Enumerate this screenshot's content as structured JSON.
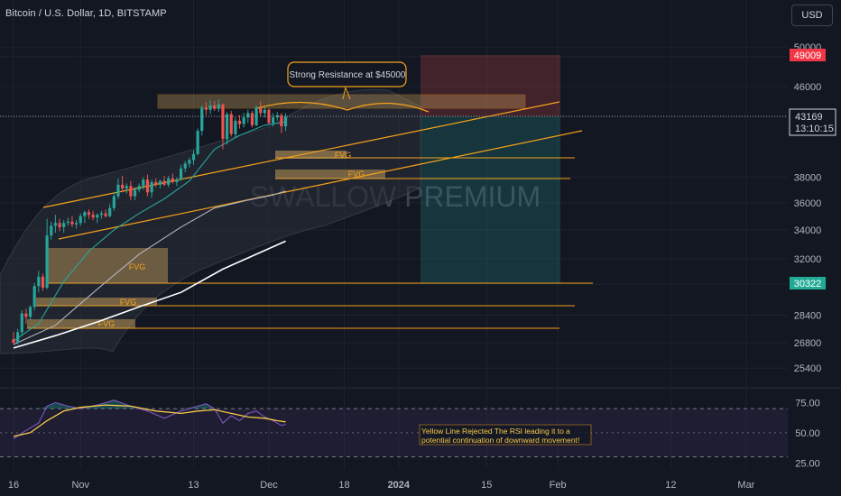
{
  "header": {
    "symbol_title": "Bitcoin / U.S. Dollar, 1D, BITSTAMP",
    "currency_button": "USD"
  },
  "watermark": "SWALLOW PREMIUM",
  "colors": {
    "background": "#131722",
    "up_candle": "#26a69a",
    "down_candle": "#ef5350",
    "annotation": "#f7a21b",
    "sma_fast": "#26a69a",
    "sma_mid": "#b2b5be",
    "sma_slow": "#ffffff",
    "rsi_line": "#7e57c2",
    "rsi_ma": "#f7c948"
  },
  "annotations": {
    "resistance_label": "Strong Resistance at $45000",
    "fvg_label": "FVG",
    "rsi_note_line1": "Yellow Line Rejected The RSI leading it to a",
    "rsi_note_line2": "potential continuation of downward movement!"
  },
  "price_badges": {
    "target_high": "49009",
    "current": "43169",
    "countdown": "13:10:15",
    "target_low": "30322"
  },
  "chart_data": {
    "type": "candlestick",
    "title": "Bitcoin / U.S. Dollar, 1D, BITSTAMP",
    "y_scale": "log",
    "y_ticks": [
      25400,
      26800,
      28400,
      30322,
      32000,
      34000,
      36000,
      38000,
      43169,
      46000,
      49009,
      50000
    ],
    "x_ticks": [
      "16",
      "Nov",
      "13",
      "Dec",
      "18",
      "2024",
      "15",
      "Feb",
      "12",
      "Mar"
    ],
    "x_tick_days": [
      0,
      16,
      43,
      61,
      79,
      92,
      113,
      130,
      157,
      175
    ],
    "ohlc": [
      [
        0,
        27000,
        27400,
        26700,
        26800
      ],
      [
        1,
        26800,
        27600,
        26700,
        27400
      ],
      [
        2,
        27400,
        28700,
        27200,
        28500
      ],
      [
        3,
        28500,
        28800,
        27900,
        28300
      ],
      [
        4,
        28300,
        29000,
        28100,
        28900
      ],
      [
        5,
        28900,
        30400,
        28700,
        30200
      ],
      [
        6,
        30200,
        31200,
        29800,
        30800
      ],
      [
        7,
        30800,
        31000,
        29900,
        30100
      ],
      [
        8,
        30100,
        34800,
        30000,
        33600
      ],
      [
        9,
        33600,
        34600,
        33300,
        34300
      ],
      [
        10,
        34300,
        35100,
        33800,
        34500
      ],
      [
        11,
        34500,
        34800,
        33900,
        34200
      ],
      [
        12,
        34200,
        34700,
        33800,
        34500
      ],
      [
        13,
        34500,
        34900,
        34300,
        34600
      ],
      [
        14,
        34600,
        35000,
        34200,
        34400
      ],
      [
        15,
        34400,
        34700,
        34100,
        34500
      ],
      [
        16,
        34500,
        35200,
        34300,
        35000
      ],
      [
        17,
        35000,
        35400,
        34500,
        35300
      ],
      [
        18,
        35300,
        35500,
        34800,
        35100
      ],
      [
        19,
        35100,
        35400,
        34700,
        34900
      ],
      [
        20,
        34900,
        35200,
        34500,
        35100
      ],
      [
        21,
        35100,
        35400,
        34800,
        35200
      ],
      [
        22,
        35200,
        35500,
        34900,
        35000
      ],
      [
        23,
        35000,
        35900,
        34900,
        35600
      ],
      [
        24,
        35600,
        36800,
        35400,
        36500
      ],
      [
        25,
        36500,
        37900,
        36300,
        37400
      ],
      [
        26,
        37400,
        38100,
        36800,
        37100
      ],
      [
        27,
        37100,
        37500,
        36700,
        37300
      ],
      [
        28,
        37300,
        37700,
        36200,
        36500
      ],
      [
        29,
        36500,
        37200,
        36200,
        37000
      ],
      [
        30,
        37000,
        37500,
        36800,
        37300
      ],
      [
        31,
        37300,
        38000,
        37000,
        37800
      ],
      [
        32,
        37800,
        38200,
        36500,
        36800
      ],
      [
        33,
        36800,
        37800,
        36400,
        37600
      ],
      [
        34,
        37600,
        37900,
        37200,
        37400
      ],
      [
        35,
        37400,
        37800,
        37100,
        37700
      ],
      [
        36,
        37700,
        38100,
        37300,
        37400
      ],
      [
        37,
        37400,
        38100,
        37200,
        37900
      ],
      [
        38,
        37900,
        38300,
        37500,
        37600
      ],
      [
        39,
        37600,
        38000,
        37300,
        37800
      ],
      [
        40,
        37800,
        39000,
        37700,
        38700
      ],
      [
        41,
        38700,
        39300,
        38400,
        39100
      ],
      [
        42,
        39100,
        39600,
        38800,
        39400
      ],
      [
        43,
        39400,
        40200,
        39000,
        39900
      ],
      [
        44,
        39900,
        42100,
        39800,
        41900
      ],
      [
        45,
        41900,
        44200,
        41500,
        44000
      ],
      [
        46,
        44000,
        44500,
        43300,
        43800
      ],
      [
        47,
        43800,
        44700,
        43400,
        44200
      ],
      [
        48,
        44200,
        44600,
        43700,
        43900
      ],
      [
        49,
        43900,
        44800,
        43600,
        44300
      ],
      [
        50,
        44300,
        44400,
        40300,
        41200
      ],
      [
        51,
        41200,
        43600,
        40700,
        43400
      ],
      [
        52,
        43400,
        43700,
        41400,
        41600
      ],
      [
        53,
        41600,
        43100,
        41300,
        42800
      ],
      [
        54,
        42800,
        43300,
        42100,
        42500
      ],
      [
        55,
        42500,
        43500,
        42200,
        43100
      ],
      [
        56,
        43100,
        43800,
        42600,
        43500
      ],
      [
        57,
        43500,
        43700,
        42200,
        42400
      ],
      [
        58,
        42400,
        44200,
        42300,
        44000
      ],
      [
        59,
        44000,
        44600,
        43200,
        43500
      ],
      [
        60,
        43500,
        44100,
        43100,
        43800
      ],
      [
        61,
        43800,
        43900,
        42500,
        42600
      ],
      [
        62,
        42600,
        43500,
        42300,
        43100
      ],
      [
        63,
        43100,
        43600,
        42800,
        43300
      ],
      [
        64,
        43300,
        43500,
        41700,
        42300
      ],
      [
        65,
        42300,
        43500,
        41900,
        43169
      ]
    ],
    "series": [
      {
        "name": "",
        "type": "line",
        "values": [
          [
            0,
            26900
          ],
          [
            6,
            27900
          ],
          [
            12,
            30500
          ],
          [
            18,
            32500
          ],
          [
            24,
            34000
          ],
          [
            30,
            35200
          ],
          [
            36,
            36300
          ],
          [
            42,
            37700
          ],
          [
            48,
            40300
          ],
          [
            54,
            41500
          ],
          [
            60,
            42400
          ],
          [
            65,
            42700
          ]
        ]
      },
      {
        "name": "",
        "type": "line",
        "values": [
          [
            0,
            26700
          ],
          [
            10,
            27800
          ],
          [
            20,
            30000
          ],
          [
            30,
            32300
          ],
          [
            40,
            34200
          ],
          [
            48,
            35600
          ],
          [
            56,
            36200
          ],
          [
            62,
            36600
          ],
          [
            65,
            36900
          ]
        ]
      },
      {
        "name": "",
        "type": "line",
        "values": [
          [
            0,
            26500
          ],
          [
            10,
            27200
          ],
          [
            20,
            28000
          ],
          [
            30,
            28900
          ],
          [
            40,
            29800
          ],
          [
            50,
            31300
          ],
          [
            58,
            32300
          ],
          [
            65,
            33200
          ]
        ]
      }
    ],
    "rsi": {
      "ticks": [
        25,
        50,
        75
      ],
      "bands": [
        30,
        70
      ],
      "line": [
        [
          0,
          45
        ],
        [
          3,
          52
        ],
        [
          6,
          58
        ],
        [
          8,
          72
        ],
        [
          10,
          75
        ],
        [
          13,
          72
        ],
        [
          16,
          70
        ],
        [
          20,
          73
        ],
        [
          24,
          77
        ],
        [
          28,
          72
        ],
        [
          32,
          68
        ],
        [
          36,
          62
        ],
        [
          40,
          68
        ],
        [
          44,
          72
        ],
        [
          46,
          74
        ],
        [
          48,
          70
        ],
        [
          50,
          58
        ],
        [
          52,
          64
        ],
        [
          54,
          60
        ],
        [
          56,
          66
        ],
        [
          58,
          68
        ],
        [
          60,
          63
        ],
        [
          62,
          60
        ],
        [
          64,
          56
        ],
        [
          65,
          57
        ]
      ],
      "ma": [
        [
          0,
          47
        ],
        [
          4,
          50
        ],
        [
          8,
          60
        ],
        [
          12,
          68
        ],
        [
          16,
          71
        ],
        [
          22,
          73
        ],
        [
          28,
          72
        ],
        [
          34,
          68
        ],
        [
          40,
          66
        ],
        [
          44,
          68
        ],
        [
          48,
          69
        ],
        [
          52,
          66
        ],
        [
          56,
          63
        ],
        [
          60,
          62
        ],
        [
          63,
          60
        ],
        [
          65,
          59
        ]
      ]
    },
    "grid": true
  }
}
